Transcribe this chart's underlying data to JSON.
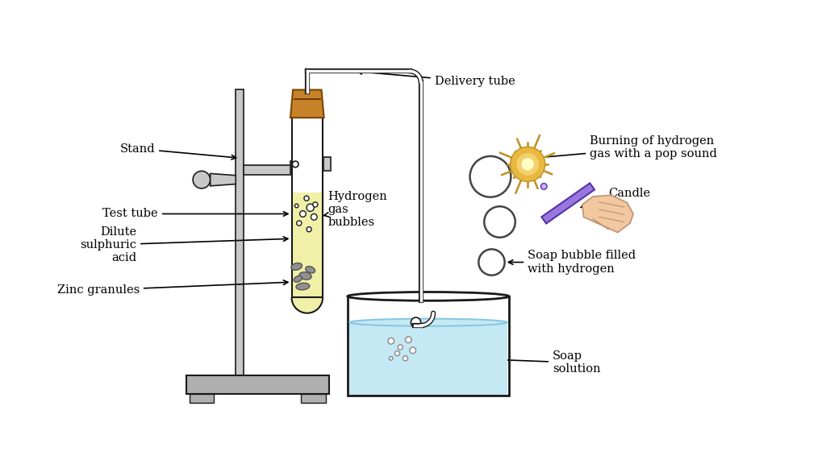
{
  "bg_color": "#ffffff",
  "stand_color": "#c8c8c8",
  "base_color": "#b0b0b0",
  "tube_outline": "#1a1a1a",
  "tube_fill": "#f8f8e0",
  "cork_color": "#c8832a",
  "acid_fill": "#f0f0a8",
  "zinc_color": "#909090",
  "water_color": "#c5e8f5",
  "beaker_color": "#1a1a1a",
  "candle_color_top": "#b090e0",
  "candle_color_bot": "#9070c0",
  "hand_color": "#f2c8a0",
  "flame_outer": "#e8b840",
  "flame_inner": "#f5d070",
  "spark_lines": "#c09020",
  "soap_bubble_edge": "#333333",
  "label_font": "DejaVu Serif",
  "fs": 10.5,
  "labels": {
    "stand": "Stand",
    "test_tube": "Test tube",
    "dilute": "Dilute\nsulphuric\nacid",
    "zinc": "Zinc granules",
    "h_bubbles": "Hydrogen\ngas\nbubbles",
    "delivery": "Delivery tube",
    "burning": "Burning of hydrogen\ngas with a pop sound",
    "candle": "Candle",
    "soap_bubble": "Soap bubble filled\nwith hydrogen",
    "soap_solution": "Soap\nsolution"
  }
}
